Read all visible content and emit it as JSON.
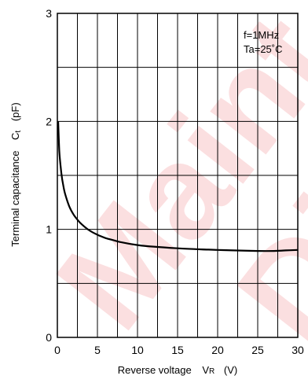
{
  "watermark": {
    "line1": "Maint",
    "line2": "Disc",
    "color": "#e8141c"
  },
  "chart_data": {
    "type": "line",
    "xlabel": "Reverse voltage",
    "xlabel_symbol": "V",
    "xlabel_subscript": "R",
    "xlabel_unit": "(V)",
    "ylabel": "Terminal capacitance",
    "ylabel_symbol": "C",
    "ylabel_subscript": "t",
    "ylabel_unit": "(pF)",
    "xlim": [
      0,
      30
    ],
    "ylim": [
      0,
      3
    ],
    "x_ticks": [
      0,
      5,
      10,
      15,
      20,
      25,
      30
    ],
    "y_ticks": [
      0,
      1,
      2,
      3
    ],
    "x_gridlines": [
      0,
      2.5,
      5,
      7.5,
      10,
      12.5,
      15,
      17.5,
      20,
      22.5,
      25,
      27.5,
      30
    ],
    "y_gridlines": [
      0,
      0.5,
      1,
      1.5,
      2,
      2.5,
      3
    ],
    "grid": true,
    "annotations": [
      "f=1MHz",
      "Ta=25˚C"
    ],
    "series": [
      {
        "color": "#000000",
        "x": [
          0.1,
          0.25,
          0.5,
          0.75,
          1.0,
          1.5,
          2.0,
          2.5,
          3.0,
          4.0,
          5.0,
          6.0,
          7.0,
          8.0,
          10.0,
          12.0,
          15.0,
          18.0,
          20.0,
          22.0,
          25.0,
          27.0,
          28.5,
          30.0
        ],
        "y": [
          2.0,
          1.72,
          1.52,
          1.4,
          1.32,
          1.21,
          1.14,
          1.09,
          1.05,
          0.99,
          0.95,
          0.92,
          0.9,
          0.88,
          0.855,
          0.84,
          0.825,
          0.815,
          0.81,
          0.805,
          0.8,
          0.8,
          0.805,
          0.81
        ]
      }
    ]
  }
}
